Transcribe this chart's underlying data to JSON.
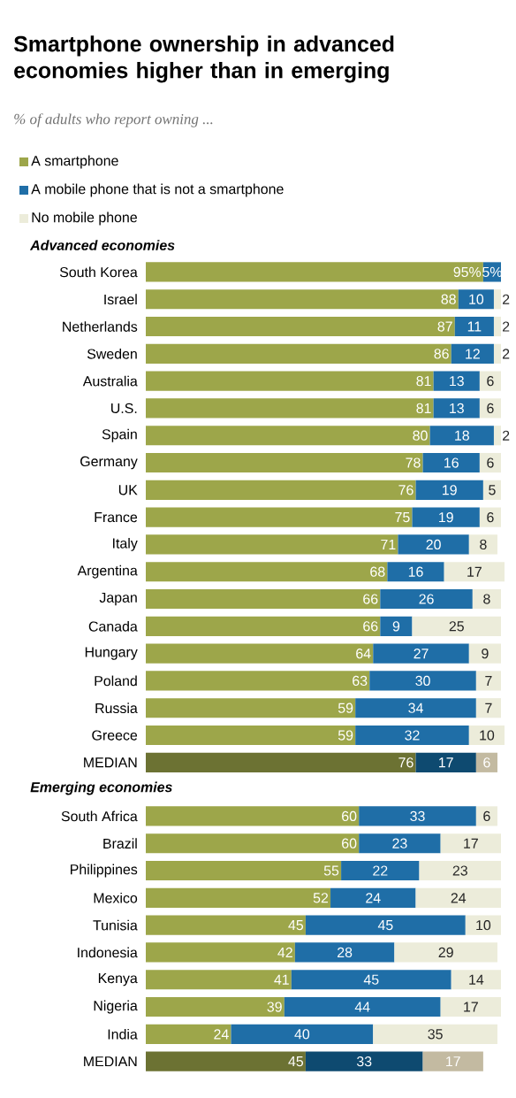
{
  "chart_data": [
    {
      "type": "bar",
      "orientation": "horizontal",
      "stacked": true,
      "title": "Smartphone ownership in advanced economies higher than in emerging",
      "subtitle": "% of adults who report owning ...",
      "annotations": [
        "Advanced economies"
      ],
      "legend": "top left",
      "categories": [
        "South Korea",
        "Israel",
        "Netherlands",
        "Sweden",
        "Australia",
        "U.S.",
        "Spain",
        "Germany",
        "UK",
        "France",
        "Italy",
        "Argentina",
        "Japan",
        "Canada",
        "Hungary",
        "Poland",
        "Russia",
        "Greece",
        "MEDIAN"
      ],
      "series": [
        {
          "name": "A smartphone",
          "color": "#9da64a",
          "colors": [
            "#9da64a",
            "#9da64a",
            "#9da64a",
            "#9da64a",
            "#9da64a",
            "#9da64a",
            "#9da64a",
            "#9da64a",
            "#9da64a",
            "#9da64a",
            "#9da64a",
            "#9da64a",
            "#9da64a",
            "#9da64a",
            "#9da64a",
            "#9da64a",
            "#9da64a",
            "#9da64a",
            "#6c7233"
          ],
          "values": [
            95,
            88,
            87,
            86,
            81,
            81,
            80,
            78,
            76,
            75,
            71,
            68,
            66,
            66,
            64,
            63,
            59,
            59,
            76
          ],
          "value_labels": [
            "95%",
            "88",
            "87",
            "86",
            "81",
            "81",
            "80",
            "78",
            "76",
            "75",
            "71",
            "68",
            "66",
            "66",
            "64",
            "63",
            "59",
            "59",
            "76"
          ]
        },
        {
          "name": "A mobile phone that is not a smartphone",
          "color": "#1f6ea7",
          "colors": [
            "#1f6ea7",
            "#1f6ea7",
            "#1f6ea7",
            "#1f6ea7",
            "#1f6ea7",
            "#1f6ea7",
            "#1f6ea7",
            "#1f6ea7",
            "#1f6ea7",
            "#1f6ea7",
            "#1f6ea7",
            "#1f6ea7",
            "#1f6ea7",
            "#1f6ea7",
            "#1f6ea7",
            "#1f6ea7",
            "#1f6ea7",
            "#1f6ea7",
            "#0e4a70"
          ],
          "values": [
            5,
            10,
            11,
            12,
            13,
            13,
            18,
            16,
            19,
            19,
            20,
            16,
            26,
            9,
            27,
            30,
            34,
            32,
            17
          ],
          "value_labels": [
            "5%",
            "10",
            "11",
            "12",
            "13",
            "13",
            "18",
            "16",
            "19",
            "19",
            "20",
            "16",
            "26",
            "9",
            "27",
            "30",
            "34",
            "32",
            "17"
          ]
        },
        {
          "name": "No mobile phone",
          "color": "#ececda",
          "colors": [
            "#ececda",
            "#ececda",
            "#ececda",
            "#ececda",
            "#ececda",
            "#ececda",
            "#ececda",
            "#ececda",
            "#ececda",
            "#ececda",
            "#ececda",
            "#ececda",
            "#ececda",
            "#ececda",
            "#ececda",
            "#ececda",
            "#ececda",
            "#ececda",
            "#c3baa1"
          ],
          "values": [
            0,
            2,
            2,
            2,
            6,
            6,
            2,
            6,
            5,
            6,
            8,
            17,
            8,
            25,
            9,
            7,
            7,
            10,
            6
          ],
          "value_labels": [
            null,
            "2",
            "2",
            "2",
            "6",
            "6",
            "2",
            "6",
            "5",
            "6",
            "8",
            "17",
            "8",
            "25",
            "9",
            "7",
            "7",
            "10",
            "6"
          ]
        }
      ]
    },
    {
      "type": "bar",
      "orientation": "horizontal",
      "stacked": true,
      "title": "Emerging economies",
      "categories": [
        "South Africa",
        "Brazil",
        "Philippines",
        "Mexico",
        "Tunisia",
        "Indonesia",
        "Kenya",
        "Nigeria",
        "India",
        "MEDIAN"
      ],
      "series": [
        {
          "colors": [
            "#9da64a",
            "#9da64a",
            "#9da64a",
            "#9da64a",
            "#9da64a",
            "#9da64a",
            "#9da64a",
            "#9da64a",
            "#9da64a",
            "#6c7233"
          ],
          "values": [
            60,
            60,
            55,
            52,
            45,
            42,
            41,
            39,
            24,
            45
          ],
          "value_labels": [
            "60",
            "60",
            "55",
            "52",
            "45",
            "42",
            "41",
            "39",
            "24",
            "45"
          ]
        },
        {
          "colors": [
            "#1f6ea7",
            "#1f6ea7",
            "#1f6ea7",
            "#1f6ea7",
            "#1f6ea7",
            "#1f6ea7",
            "#1f6ea7",
            "#1f6ea7",
            "#1f6ea7",
            "#0e4a70"
          ],
          "values": [
            33,
            23,
            22,
            24,
            45,
            28,
            45,
            44,
            40,
            33
          ],
          "value_labels": [
            "33",
            "23",
            "22",
            "24",
            "45",
            "28",
            "45",
            "44",
            "40",
            "33"
          ]
        },
        {
          "colors": [
            "#ececda",
            "#ececda",
            "#ececda",
            "#ececda",
            "#ececda",
            "#ececda",
            "#ececda",
            "#ececda",
            "#ececda",
            "#c3baa1"
          ],
          "values": [
            6,
            17,
            23,
            24,
            10,
            29,
            14,
            17,
            35,
            17
          ],
          "value_labels": [
            "6",
            "17",
            "23",
            "24",
            "10",
            "29",
            "14",
            "17",
            "35",
            "17"
          ]
        }
      ]
    }
  ]
}
